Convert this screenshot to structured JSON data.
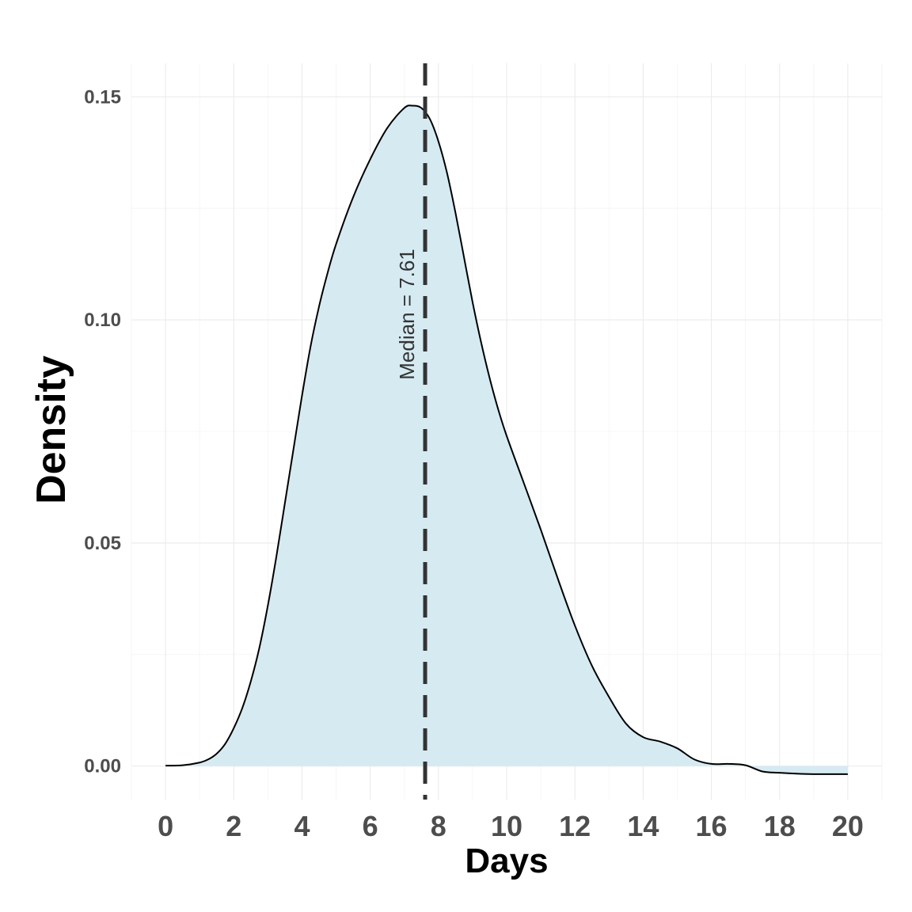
{
  "chart_data": {
    "type": "area",
    "xlabel": "Days",
    "ylabel": "Density",
    "xlim": [
      -1,
      21
    ],
    "ylim": [
      -0.0075,
      0.1575
    ],
    "x_ticks": [
      0,
      2,
      4,
      6,
      8,
      10,
      12,
      14,
      16,
      18,
      20
    ],
    "x_tick_labels": [
      "0",
      "2",
      "4",
      "6",
      "8",
      "10",
      "12",
      "14",
      "16",
      "18",
      "20"
    ],
    "y_ticks": [
      0.0,
      0.05,
      0.1,
      0.15
    ],
    "y_tick_labels": [
      "0.00",
      "0.05",
      "0.10",
      "0.15"
    ],
    "grid": true,
    "fill_color": "#d6eaf2",
    "line_color": "#000000",
    "series": [
      {
        "x": [
          0,
          0.5,
          1,
          1.25,
          1.5,
          1.75,
          2,
          2.25,
          2.5,
          2.75,
          3,
          3.25,
          3.5,
          3.75,
          4,
          4.25,
          4.5,
          4.75,
          5,
          5.5,
          6,
          6.5,
          7,
          7.25,
          7.5,
          7.75,
          8,
          8.25,
          8.5,
          8.75,
          9,
          9.25,
          9.5,
          9.75,
          10,
          10.5,
          11,
          11.5,
          12,
          12.5,
          13,
          13.5,
          14,
          14.5,
          15,
          15.5,
          16,
          16.5,
          17,
          17.5,
          18,
          18.5,
          19,
          19.5,
          20
        ],
        "y": [
          0.0001,
          0.0002,
          0.0008,
          0.0015,
          0.0028,
          0.005,
          0.0085,
          0.013,
          0.019,
          0.0265,
          0.036,
          0.047,
          0.059,
          0.071,
          0.083,
          0.094,
          0.103,
          0.1105,
          0.117,
          0.1275,
          0.136,
          0.143,
          0.1475,
          0.148,
          0.1475,
          0.145,
          0.14,
          0.133,
          0.124,
          0.114,
          0.104,
          0.095,
          0.087,
          0.08,
          0.074,
          0.0635,
          0.053,
          0.042,
          0.0315,
          0.0225,
          0.0155,
          0.0095,
          0.0065,
          0.0055,
          0.004,
          0.0015,
          0.0005,
          0.0005,
          0.0002,
          -0.0012,
          -0.0015,
          -0.0017,
          -0.0018,
          -0.0018,
          -0.0018
        ]
      }
    ],
    "median": {
      "value": 7.61,
      "label": "Median = 7.61",
      "line_color": "#333333",
      "line_style": "dashed"
    }
  }
}
